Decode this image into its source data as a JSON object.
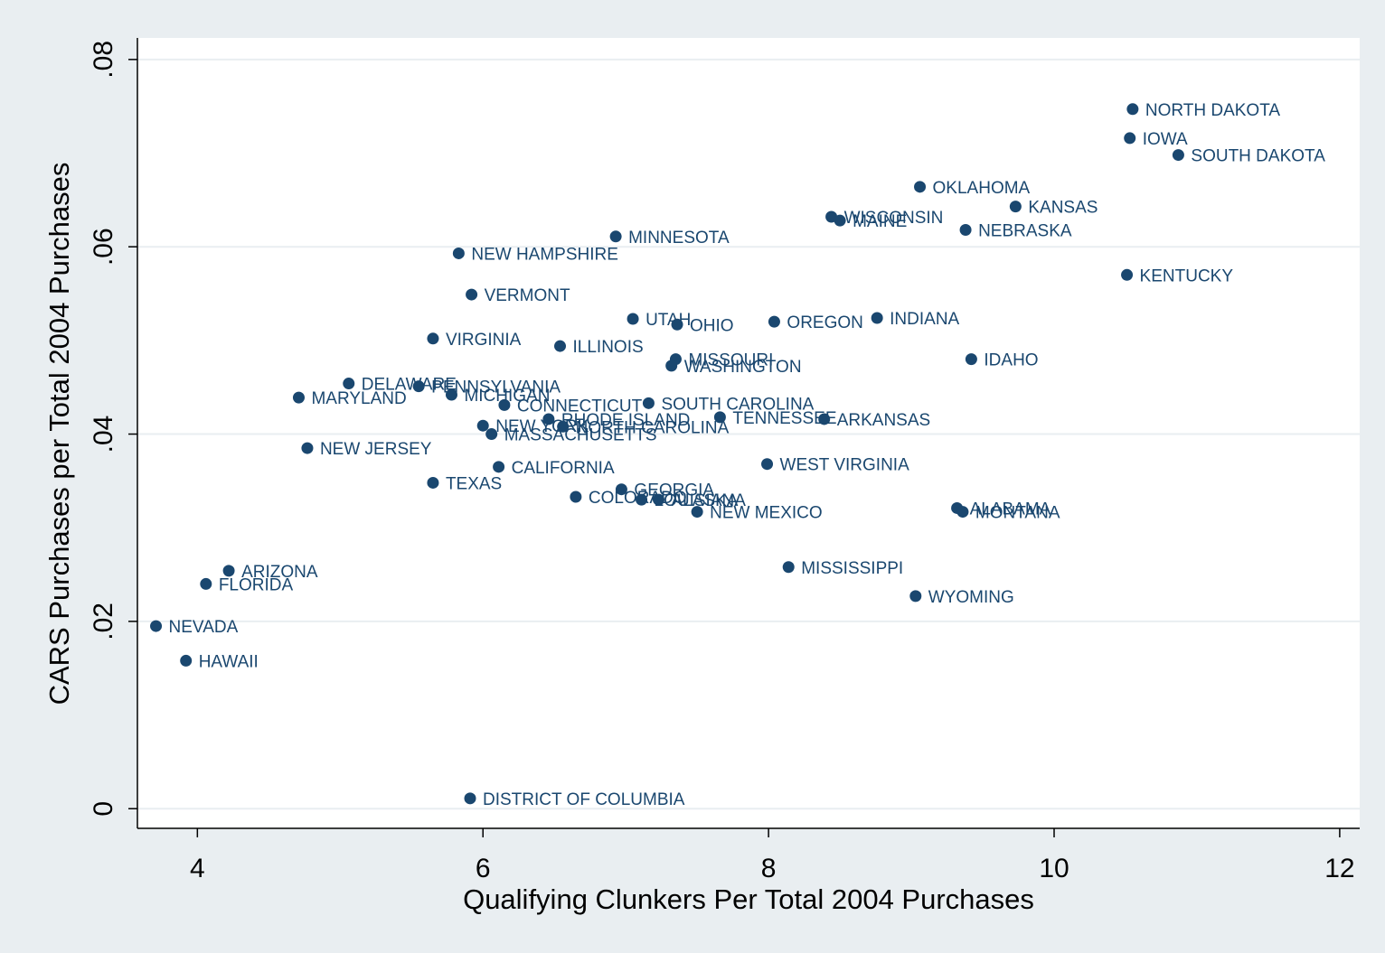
{
  "chart_data": {
    "type": "scatter",
    "xlabel": "Qualifying Clunkers Per Total 2004 Purchases",
    "ylabel": "CARS Purchases per Total 2004 Purchases",
    "color": "#1a476f",
    "grid": true,
    "xlim": [
      3.58,
      12.14
    ],
    "ylim": [
      -0.0021,
      0.0823
    ],
    "xticks": [
      4,
      6,
      8,
      10,
      12
    ],
    "yticks": [
      0,
      {
        "value": 0.02,
        "label": ".02"
      },
      {
        "value": 0.04,
        "label": ".04"
      },
      {
        "value": 0.06,
        "label": ".06"
      },
      {
        "value": 0.08,
        "label": ".08"
      }
    ],
    "labels": [
      "NORTH DAKOTA",
      "IOWA",
      "SOUTH DAKOTA",
      "OKLAHOMA",
      "KANSAS",
      "WISCONSIN",
      "MAINE",
      "NEBRASKA",
      "MINNESOTA",
      "NEW HAMPSHIRE",
      "KENTUCKY",
      "VERMONT",
      "UTAH",
      "OHIO",
      "OREGON",
      "INDIANA",
      "VIRGINIA",
      "ILLINOIS",
      "MISSOURI",
      "WASHINGTON",
      "IDAHO",
      "DELAWARE",
      "PENNSYLVANIA",
      "MICHIGAN",
      "MARYLAND",
      "CONNECTICUT",
      "SOUTH CAROLINA",
      "RHODE ISLAND",
      "TENNESSEE",
      "ARKANSAS",
      "NEW YORK",
      "NORTH CAROLINA",
      "MASSACHUSETTS",
      "NEW JERSEY",
      "WEST VIRGINIA",
      "CALIFORNIA",
      "TEXAS",
      "GEORGIA",
      "COLORADO",
      "LOUISIANA",
      "ALASKA",
      "NEW MEXICO",
      "ALABAMA",
      "MONTANA",
      "MISSISSIPPI",
      "WYOMING",
      "ARIZONA",
      "FLORIDA",
      "NEVADA",
      "HAWAII",
      "DISTRICT OF COLUMBIA"
    ],
    "x": [
      10.55,
      10.53,
      10.87,
      9.06,
      9.73,
      8.44,
      8.5,
      9.38,
      6.93,
      5.83,
      10.51,
      5.92,
      7.05,
      7.36,
      8.04,
      8.76,
      5.65,
      6.54,
      7.35,
      7.32,
      9.42,
      5.06,
      5.55,
      5.78,
      4.71,
      6.15,
      7.16,
      6.46,
      7.66,
      8.39,
      6.0,
      6.56,
      6.06,
      4.77,
      7.99,
      6.11,
      5.65,
      6.97,
      6.65,
      7.11,
      7.23,
      7.5,
      9.32,
      9.36,
      8.14,
      9.03,
      4.22,
      4.06,
      3.71,
      3.92,
      5.91
    ],
    "y": [
      0.0747,
      0.0716,
      0.0698,
      0.0664,
      0.0643,
      0.0632,
      0.0628,
      0.0618,
      0.0611,
      0.0593,
      0.057,
      0.0549,
      0.0523,
      0.0517,
      0.052,
      0.0524,
      0.0502,
      0.0494,
      0.048,
      0.0473,
      0.048,
      0.0454,
      0.0451,
      0.0442,
      0.0439,
      0.0431,
      0.0433,
      0.0416,
      0.0418,
      0.0416,
      0.0409,
      0.0408,
      0.04,
      0.0385,
      0.0368,
      0.0365,
      0.0348,
      0.0341,
      0.0333,
      0.033,
      0.033,
      0.0317,
      0.0321,
      0.0317,
      0.0258,
      0.0227,
      0.0254,
      0.024,
      0.0195,
      0.0158,
      0.0011
    ]
  }
}
